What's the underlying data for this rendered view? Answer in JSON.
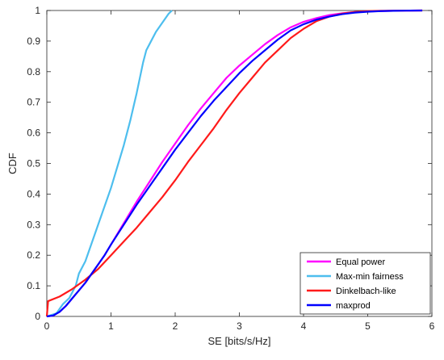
{
  "chart_data": {
    "type": "line",
    "title": "",
    "xlabel": "SE [bits/s/Hz]",
    "ylabel": "CDF",
    "xlim": [
      0,
      6
    ],
    "ylim": [
      0,
      1
    ],
    "xticks": [
      "0",
      "1",
      "2",
      "3",
      "4",
      "5",
      "6"
    ],
    "yticks": [
      "0",
      "0.1",
      "0.2",
      "0.3",
      "0.4",
      "0.5",
      "0.6",
      "0.7",
      "0.8",
      "0.9",
      "1"
    ],
    "grid": false,
    "legend_position": "bottom-right",
    "series": [
      {
        "name": "Equal power",
        "color": "#ff00ff",
        "x": [
          0.0,
          0.1,
          0.2,
          0.3,
          0.4,
          0.5,
          0.6,
          0.7,
          0.8,
          0.9,
          1.0,
          1.2,
          1.4,
          1.6,
          1.8,
          2.0,
          2.2,
          2.4,
          2.6,
          2.8,
          3.0,
          3.2,
          3.4,
          3.6,
          3.8,
          4.0,
          4.2,
          4.4,
          4.6,
          4.8,
          5.0,
          5.2,
          5.4,
          5.6,
          5.85
        ],
        "y": [
          0.0,
          0.003,
          0.015,
          0.035,
          0.06,
          0.085,
          0.11,
          0.14,
          0.17,
          0.2,
          0.235,
          0.305,
          0.375,
          0.44,
          0.505,
          0.565,
          0.625,
          0.68,
          0.73,
          0.78,
          0.82,
          0.855,
          0.89,
          0.92,
          0.945,
          0.963,
          0.975,
          0.985,
          0.991,
          0.995,
          0.997,
          0.998,
          0.999,
          0.9995,
          1.0
        ]
      },
      {
        "name": "Max-min fairness",
        "color": "#4dbeee",
        "x": [
          0.0,
          0.15,
          0.25,
          0.35,
          0.45,
          0.5,
          0.6,
          0.7,
          0.8,
          0.9,
          1.0,
          1.1,
          1.2,
          1.3,
          1.4,
          1.5,
          1.55,
          1.6,
          1.7,
          1.8,
          1.9,
          1.95
        ],
        "y": [
          0.0,
          0.01,
          0.04,
          0.06,
          0.1,
          0.14,
          0.18,
          0.24,
          0.3,
          0.36,
          0.42,
          0.49,
          0.56,
          0.64,
          0.73,
          0.83,
          0.87,
          0.89,
          0.93,
          0.96,
          0.99,
          1.0
        ]
      },
      {
        "name": "Dinkelbach-like",
        "color": "#ff1a1a",
        "x": [
          0.0,
          0.02,
          0.2,
          0.4,
          0.6,
          0.8,
          1.0,
          1.2,
          1.4,
          1.6,
          1.8,
          2.0,
          2.2,
          2.4,
          2.6,
          2.8,
          3.0,
          3.2,
          3.4,
          3.6,
          3.8,
          4.0,
          4.2,
          4.4,
          4.6,
          4.8,
          5.0,
          5.2,
          5.4,
          5.6,
          5.85
        ],
        "y": [
          0.0,
          0.05,
          0.065,
          0.09,
          0.12,
          0.155,
          0.2,
          0.245,
          0.29,
          0.34,
          0.39,
          0.445,
          0.505,
          0.56,
          0.615,
          0.675,
          0.73,
          0.78,
          0.83,
          0.87,
          0.91,
          0.94,
          0.965,
          0.98,
          0.99,
          0.995,
          0.998,
          0.999,
          0.9995,
          0.9998,
          1.0
        ]
      },
      {
        "name": "maxprod",
        "color": "#0000ff",
        "x": [
          0.0,
          0.1,
          0.2,
          0.3,
          0.4,
          0.5,
          0.6,
          0.7,
          0.8,
          0.9,
          1.0,
          1.2,
          1.4,
          1.6,
          1.8,
          2.0,
          2.2,
          2.4,
          2.6,
          2.8,
          3.0,
          3.2,
          3.4,
          3.6,
          3.8,
          4.0,
          4.2,
          4.4,
          4.6,
          4.8,
          5.0,
          5.2,
          5.4,
          5.6,
          5.85
        ],
        "y": [
          0.0,
          0.003,
          0.015,
          0.035,
          0.06,
          0.085,
          0.11,
          0.14,
          0.17,
          0.2,
          0.235,
          0.3,
          0.365,
          0.425,
          0.485,
          0.545,
          0.6,
          0.655,
          0.705,
          0.75,
          0.795,
          0.835,
          0.87,
          0.905,
          0.935,
          0.955,
          0.97,
          0.98,
          0.988,
          0.993,
          0.996,
          0.998,
          0.999,
          0.9995,
          1.0
        ]
      }
    ]
  }
}
